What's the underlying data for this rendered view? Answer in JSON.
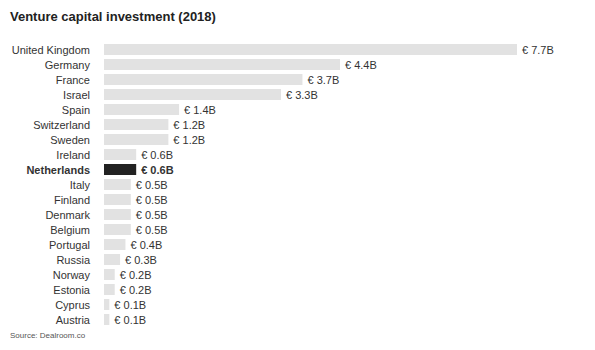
{
  "chart_data": {
    "type": "bar",
    "orientation": "horizontal",
    "title": "Venture capital investment (2018)",
    "source": "Source: Dealroom.co",
    "categories": [
      "United Kingdom",
      "Germany",
      "France",
      "Israel",
      "Spain",
      "Switzerland",
      "Sweden",
      "Ireland",
      "Netherlands",
      "Italy",
      "Finland",
      "Denmark",
      "Belgium",
      "Portugal",
      "Russia",
      "Norway",
      "Estonia",
      "Cyprus",
      "Austria"
    ],
    "values": [
      7.7,
      4.4,
      3.7,
      3.3,
      1.4,
      1.2,
      1.2,
      0.6,
      0.6,
      0.5,
      0.5,
      0.5,
      0.5,
      0.4,
      0.3,
      0.2,
      0.2,
      0.1,
      0.1
    ],
    "value_labels": [
      "€ 7.7B",
      "€ 4.4B",
      "€ 3.7B",
      "€ 3.3B",
      "€ 1.4B",
      "€ 1.2B",
      "€ 1.2B",
      "€ 0.6B",
      "€ 0.6B",
      "€ 0.5B",
      "€ 0.5B",
      "€ 0.5B",
      "€ 0.5B",
      "€ 0.4B",
      "€ 0.3B",
      "€ 0.2B",
      "€ 0.2B",
      "€ 0.1B",
      "€ 0.1B"
    ],
    "colors": [
      "#e2e2e2",
      "#e2e2e2",
      "#e2e2e2",
      "#e2e2e2",
      "#e2e2e2",
      "#e2e2e2",
      "#e2e2e2",
      "#e2e2e2",
      "#222222",
      "#e2e2e2",
      "#e2e2e2",
      "#e2e2e2",
      "#e2e2e2",
      "#e2e2e2",
      "#e2e2e2",
      "#e2e2e2",
      "#e2e2e2",
      "#e2e2e2",
      "#e2e2e2"
    ],
    "data_labels": true,
    "tick_labels": "y"
  }
}
